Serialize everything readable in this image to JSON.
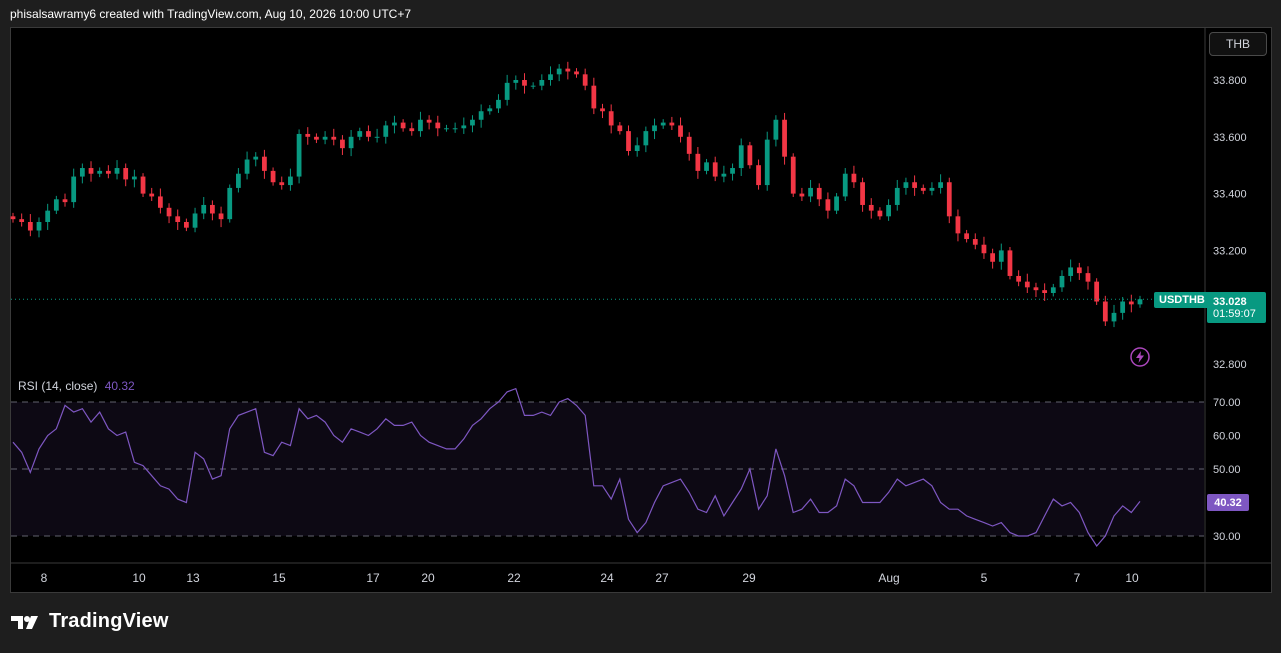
{
  "header": {
    "caption": "phisalsawramy6 created with TradingView.com, Aug 10, 2026 10:00 UTC+7"
  },
  "toolbar": {
    "currency": "THB"
  },
  "brand": {
    "name": "TradingView"
  },
  "price_scale": {
    "ticks": [
      "33.800",
      "33.600",
      "33.400",
      "33.200",
      "32.800"
    ]
  },
  "last_price": {
    "symbol": "USDTHB",
    "price": "33.028",
    "countdown": "01:59:07"
  },
  "rsi": {
    "label": "RSI (14, close)",
    "value": "40.32",
    "ticks": [
      "70.00",
      "60.00",
      "50.00",
      "30.00"
    ]
  },
  "time_axis": {
    "labels": [
      "8",
      "10",
      "13",
      "15",
      "17",
      "20",
      "22",
      "24",
      "27",
      "29",
      "Aug",
      "5",
      "7",
      "10"
    ]
  },
  "colors": {
    "up": "#089981",
    "down": "#f23645",
    "rsi_line": "#7e57c2",
    "background": "#000000"
  },
  "icons": {
    "alert": "lightning-icon",
    "logo": "tradingview-logo-icon"
  },
  "chart_data": [
    {
      "type": "candlestick",
      "title": "USDTHB",
      "ylim": [
        32.75,
        33.93
      ],
      "tick_values": [
        33.8,
        33.6,
        33.4,
        33.2,
        32.8
      ],
      "last_value": 33.028,
      "closes": [
        33.31,
        33.3,
        33.27,
        33.3,
        33.34,
        33.38,
        33.37,
        33.46,
        33.49,
        33.47,
        33.48,
        33.47,
        33.49,
        33.45,
        33.46,
        33.4,
        33.39,
        33.35,
        33.32,
        33.3,
        33.28,
        33.33,
        33.36,
        33.33,
        33.31,
        33.42,
        33.47,
        33.52,
        33.53,
        33.48,
        33.44,
        33.43,
        33.46,
        33.61,
        33.6,
        33.59,
        33.6,
        33.59,
        33.56,
        33.6,
        33.62,
        33.6,
        33.6,
        33.64,
        33.65,
        33.63,
        33.62,
        33.66,
        33.65,
        33.63,
        33.63,
        33.63,
        33.64,
        33.66,
        33.69,
        33.7,
        33.73,
        33.79,
        33.8,
        33.78,
        33.78,
        33.8,
        33.82,
        33.84,
        33.83,
        33.82,
        33.78,
        33.7,
        33.69,
        33.64,
        33.62,
        33.55,
        33.57,
        33.62,
        33.64,
        33.65,
        33.64,
        33.6,
        33.54,
        33.48,
        33.51,
        33.46,
        33.47,
        33.49,
        33.57,
        33.5,
        33.43,
        33.59,
        33.66,
        33.53,
        33.4,
        33.39,
        33.42,
        33.38,
        33.34,
        33.39,
        33.47,
        33.44,
        33.36,
        33.34,
        33.32,
        33.36,
        33.42,
        33.44,
        33.42,
        33.41,
        33.42,
        33.44,
        33.32,
        33.26,
        33.24,
        33.22,
        33.19,
        33.16,
        33.2,
        33.11,
        33.09,
        33.07,
        33.06,
        33.05,
        33.07,
        33.11,
        33.14,
        33.12,
        33.09,
        33.02,
        32.95,
        32.98,
        33.02,
        33.01,
        33.028
      ],
      "rsi_values": [
        58,
        55,
        49,
        56,
        60,
        62,
        69,
        67,
        68,
        64,
        67,
        62,
        60,
        61,
        52,
        51,
        48,
        45,
        44,
        41,
        40,
        55,
        53,
        47,
        48,
        62,
        66,
        67,
        68,
        55,
        54,
        58,
        57,
        68,
        65,
        66,
        64,
        60,
        58,
        62,
        61,
        60,
        62,
        65,
        63,
        63,
        64,
        60,
        58,
        57,
        56,
        56,
        59,
        63,
        65,
        68,
        70,
        73,
        74,
        66,
        66,
        67,
        66,
        70,
        71,
        69,
        66,
        45,
        45,
        41,
        47,
        35,
        31,
        34,
        40,
        45,
        46,
        47,
        43,
        38,
        37,
        42,
        36,
        40,
        44,
        50,
        38,
        42,
        56,
        48,
        37,
        38,
        41,
        37,
        37,
        39,
        47,
        45,
        40,
        40,
        40,
        43,
        47,
        45,
        46,
        47,
        45,
        40,
        38,
        38,
        36,
        35,
        34,
        33,
        34,
        31,
        30,
        30,
        31,
        36,
        41,
        39,
        40,
        37,
        31,
        27,
        30,
        36,
        39,
        37,
        40.32
      ]
    }
  ]
}
